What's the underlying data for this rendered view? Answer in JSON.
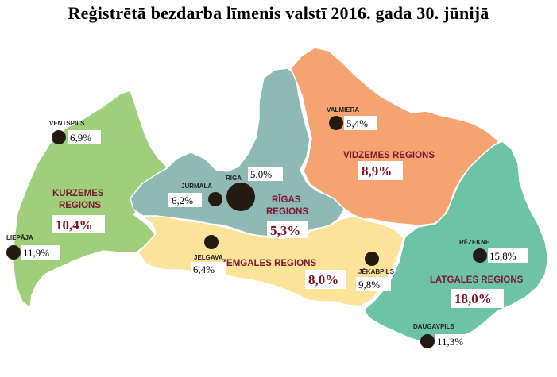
{
  "title": "Reģistrētā bezdarba līmenis valstī 2016. gada 30. jūnijā",
  "regions": [
    {
      "name1": "KURZEMES",
      "name2": "REGIONS",
      "value": "10,4%",
      "color": "#9fcf7a"
    },
    {
      "name1": "RĪGAS",
      "name2": "REGIONS",
      "value": "5,3%",
      "color": "#8fb9b4"
    },
    {
      "name1": "VIDZEMES REGIONS",
      "name2": "",
      "value": "8,9%",
      "color": "#f4a371"
    },
    {
      "name1": "ZEMGALES REGIONS",
      "name2": "",
      "value": "8,0%",
      "color": "#fbe39a"
    },
    {
      "name1": "LATGALES REGIONS",
      "name2": "",
      "value": "18,0%",
      "color": "#6cc3a6"
    }
  ],
  "cities": [
    {
      "name": "VENTSPILS",
      "value": "6,9%"
    },
    {
      "name": "LIEPĀJA",
      "value": "11,9%"
    },
    {
      "name": "JŪRMALA",
      "value": "6,2%"
    },
    {
      "name": "RĪGA",
      "value": "5,0%"
    },
    {
      "name": "JELGAVA",
      "value": "6,4%"
    },
    {
      "name": "VALMIERA",
      "value": "5,4%"
    },
    {
      "name": "JĒKABPILS",
      "value": "9,8%"
    },
    {
      "name": "RĒZEKNE",
      "value": "15,8%"
    },
    {
      "name": "DAUGAVPILS",
      "value": "11,3%"
    }
  ]
}
